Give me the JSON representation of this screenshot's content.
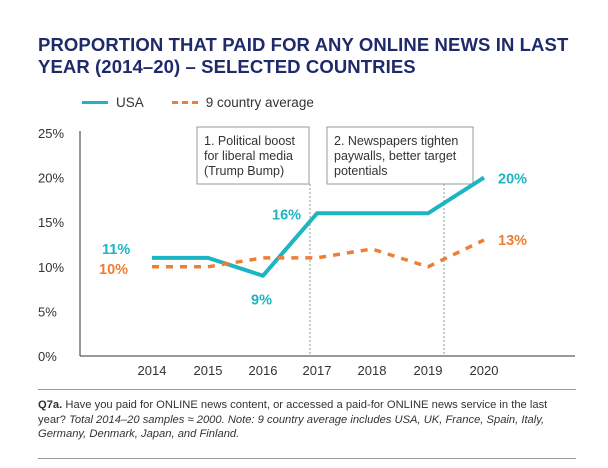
{
  "title": "PROPORTION THAT PAID FOR ANY ONLINE NEWS IN LAST YEAR (2014–20) – SELECTED COUNTRIES",
  "colors": {
    "usa": "#1cb5c1",
    "average": "#ef7e35",
    "title": "#1f2a6b",
    "annotation_box": "#999999"
  },
  "chart_data": {
    "type": "line",
    "title": "PROPORTION THAT PAID FOR ANY ONLINE NEWS IN LAST YEAR (2014–20) – SELECTED COUNTRIES",
    "xlabel": "",
    "ylabel": "",
    "x": [
      "2014",
      "2015",
      "2016",
      "2017",
      "2018",
      "2019",
      "2020"
    ],
    "ylim": [
      0,
      25
    ],
    "yticks": [
      "0%",
      "5%",
      "10%",
      "15%",
      "20%",
      "25%"
    ],
    "grid": false,
    "legend_position": "top-left",
    "series": [
      {
        "name": "USA",
        "values": [
          11,
          11,
          9,
          16,
          16,
          16,
          20
        ],
        "style": "solid"
      },
      {
        "name": "9 country average",
        "values": [
          10,
          10,
          11,
          11,
          12,
          10,
          13
        ],
        "style": "dashed"
      }
    ],
    "data_labels": [
      {
        "series": "USA",
        "x": "2014",
        "text": "11%"
      },
      {
        "series": "USA",
        "x": "2016",
        "text": "9%"
      },
      {
        "series": "USA",
        "x": "2017",
        "text": "16%"
      },
      {
        "series": "USA",
        "x": "2020",
        "text": "20%"
      },
      {
        "series": "9 country average",
        "x": "2014",
        "text": "10%"
      },
      {
        "series": "9 country average",
        "x": "2020",
        "text": "13%"
      }
    ],
    "annotations": [
      {
        "x": "2017",
        "lines": [
          "1. Political boost",
          "for liberal media",
          "(Trump Bump)"
        ]
      },
      {
        "x": "2019",
        "lines": [
          "2. Newspapers tighten",
          "paywalls, better target",
          "potentials"
        ]
      }
    ]
  },
  "footnote": {
    "label": "Q7a.",
    "text": " Have you paid for ONLINE news content, or accessed a paid-for ONLINE news service in the last year? ",
    "italic": "Total 2014–20 samples ≈ 2000.  Note: 9 country average includes USA, UK, France, Spain, Italy, Germany, Denmark, Japan, and Finland."
  }
}
